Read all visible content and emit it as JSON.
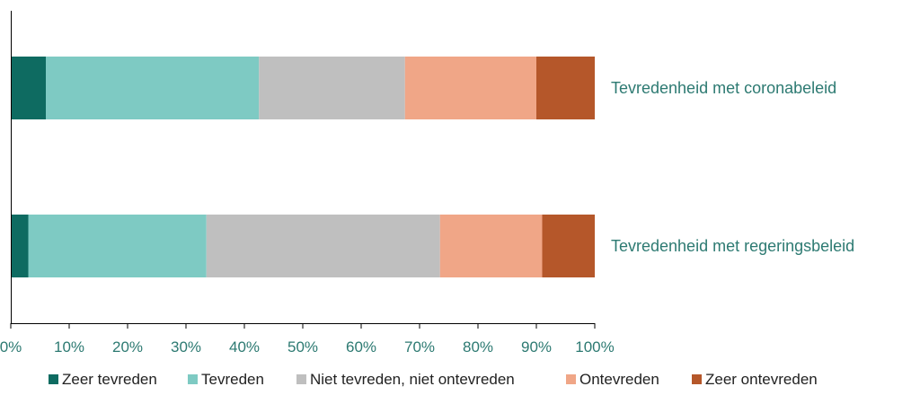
{
  "chart_data": {
    "type": "bar",
    "orientation": "horizontal",
    "stacked": true,
    "categories": [
      "Tevredenheid met coronabeleid",
      "Tevredenheid met regeringsbeleid"
    ],
    "series": [
      {
        "name": "Zeer tevreden",
        "color": "#0e6b61",
        "values": [
          6,
          3
        ]
      },
      {
        "name": "Tevreden",
        "color": "#7ecac3",
        "values": [
          36.5,
          30.5
        ]
      },
      {
        "name": "Niet tevreden, niet ontevreden",
        "color": "#bfbfbf",
        "values": [
          25,
          40
        ]
      },
      {
        "name": "Ontevreden",
        "color": "#f0a687",
        "values": [
          22.5,
          17.5
        ]
      },
      {
        "name": "Zeer ontevreden",
        "color": "#b5572a",
        "values": [
          10,
          9
        ]
      }
    ],
    "x_ticks": [
      "0%",
      "10%",
      "20%",
      "30%",
      "40%",
      "50%",
      "60%",
      "70%",
      "80%",
      "90%",
      "100%"
    ],
    "xlim": [
      0,
      100
    ],
    "grid": false,
    "legend_position": "bottom"
  }
}
